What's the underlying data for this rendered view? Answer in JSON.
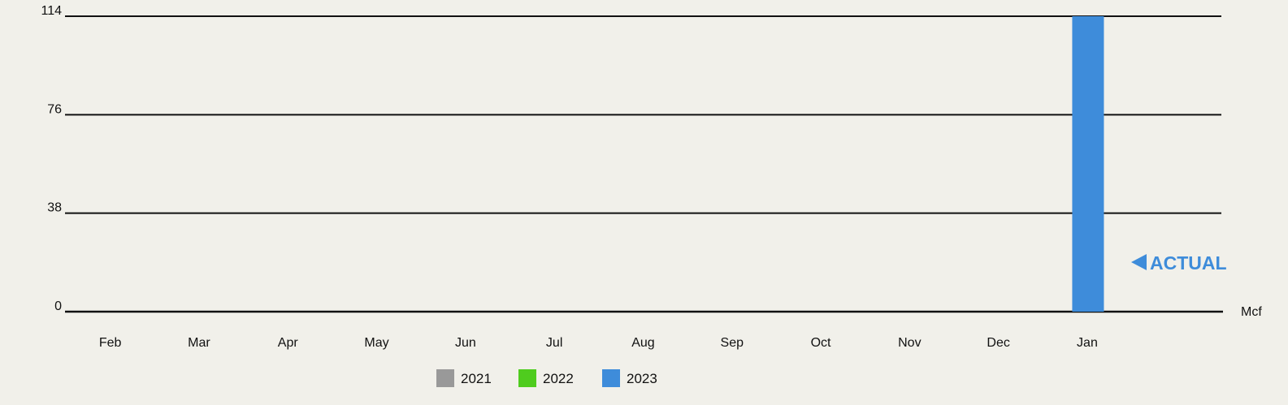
{
  "chart_data": {
    "type": "bar",
    "categories": [
      "Feb",
      "Mar",
      "Apr",
      "May",
      "Jun",
      "Jul",
      "Aug",
      "Sep",
      "Oct",
      "Nov",
      "Dec",
      "Jan"
    ],
    "series": [
      {
        "name": "2021",
        "color": "#999999",
        "values": [
          null,
          null,
          null,
          null,
          null,
          null,
          null,
          null,
          null,
          null,
          null,
          null
        ]
      },
      {
        "name": "2022",
        "color": "#4fcc1e",
        "values": [
          null,
          null,
          null,
          null,
          null,
          null,
          null,
          null,
          null,
          null,
          null,
          null
        ]
      },
      {
        "name": "2023",
        "color": "#3e8cda",
        "values": [
          null,
          null,
          null,
          null,
          null,
          null,
          null,
          null,
          null,
          null,
          null,
          114
        ]
      }
    ],
    "y_ticks": [
      "0",
      "38",
      "76",
      "114"
    ],
    "ylim": [
      0,
      114
    ],
    "unit": "Mcf",
    "grid": true,
    "legend_position": "bottom",
    "annotation": {
      "text": "ACTUAL",
      "color": "#3e8cda",
      "series": "2023",
      "category": "Jan"
    }
  }
}
